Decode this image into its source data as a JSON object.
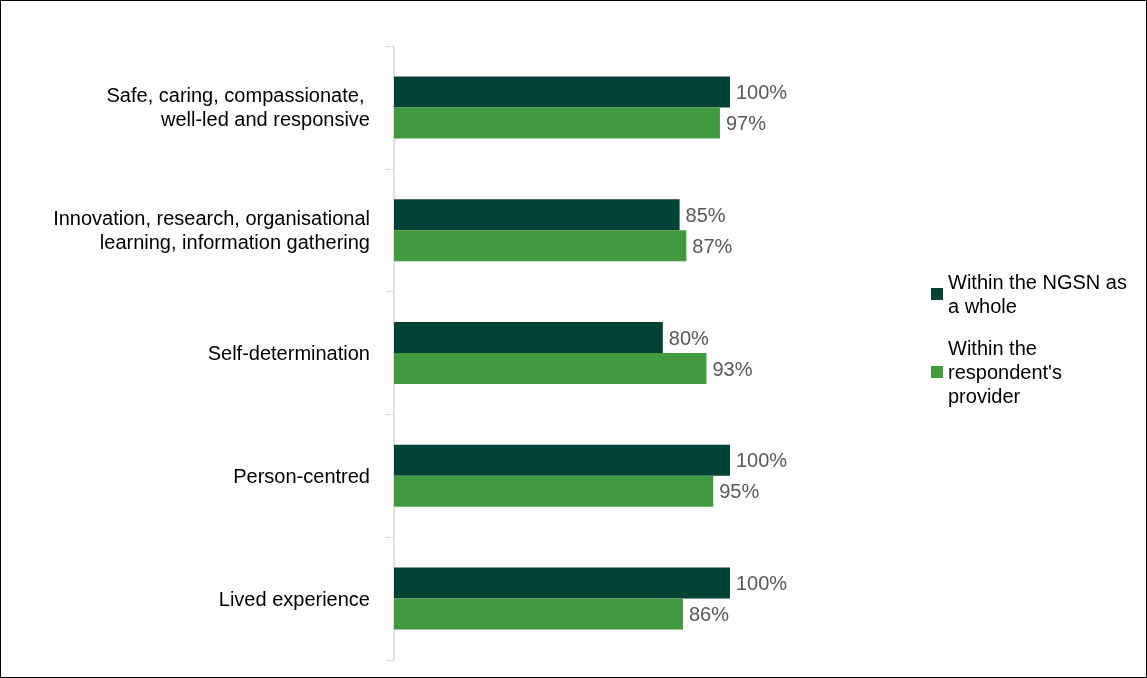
{
  "chart_data": {
    "type": "bar",
    "orientation": "horizontal",
    "categories": [
      "Safe, caring, compassionate, well-led and responsive",
      "Innovation, research, organisational learning, information gathering",
      "Self-determination",
      "Person-centred",
      "Lived experience"
    ],
    "series": [
      {
        "name": "Within the NGSN as a whole",
        "color": "#004236",
        "values": [
          100,
          85,
          80,
          100,
          100
        ],
        "value_labels": [
          "100%",
          "85%",
          "80%",
          "100%",
          "100%"
        ]
      },
      {
        "name": "Within the respondent's provider",
        "color": "#43993f",
        "values": [
          97,
          87,
          93,
          95,
          86
        ],
        "value_labels": [
          "97%",
          "87%",
          "93%",
          "95%",
          "86%"
        ]
      }
    ],
    "legend": "right"
  }
}
